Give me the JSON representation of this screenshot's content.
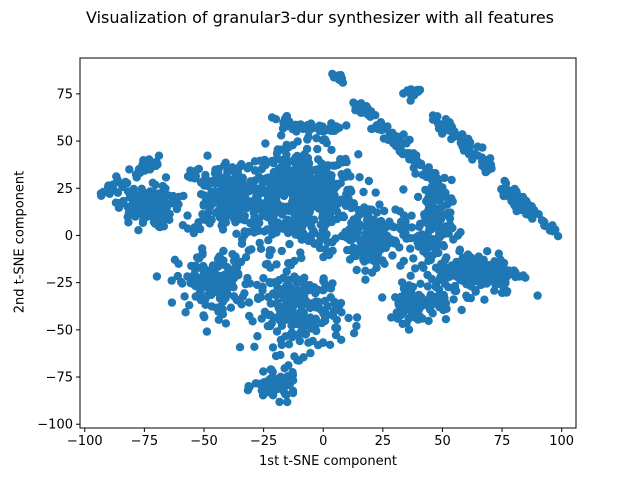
{
  "chart_data": {
    "type": "scatter",
    "title": "Visualization of granular3-dur synthesizer with all features",
    "xlabel": "1st t-SNE component",
    "ylabel": "2nd t-SNE component",
    "xlim": [
      -102,
      106
    ],
    "ylim": [
      -102,
      94
    ],
    "xticks": [
      -100,
      -75,
      -50,
      -25,
      0,
      25,
      50,
      75,
      100
    ],
    "yticks": [
      -100,
      -75,
      -50,
      -25,
      0,
      25,
      50,
      75
    ],
    "color": "#1f77b4",
    "grid": false,
    "legend": "none",
    "clusters": [
      {
        "center": [
          -10,
          20
        ],
        "spread": [
          22,
          24
        ],
        "n": 520
      },
      {
        "center": [
          -40,
          20
        ],
        "spread": [
          18,
          18
        ],
        "n": 220
      },
      {
        "center": [
          -75,
          15
        ],
        "spread": [
          10,
          10
        ],
        "n": 120
      },
      {
        "center": [
          -45,
          -25
        ],
        "spread": [
          15,
          15
        ],
        "n": 150
      },
      {
        "center": [
          -10,
          -40
        ],
        "spread": [
          16,
          20
        ],
        "n": 220
      },
      {
        "center": [
          -20,
          -80
        ],
        "spread": [
          8,
          6
        ],
        "n": 80
      },
      {
        "center": [
          20,
          0
        ],
        "spread": [
          12,
          16
        ],
        "n": 160
      },
      {
        "center": [
          45,
          5
        ],
        "spread": [
          8,
          22
        ],
        "n": 130
      },
      {
        "center": [
          65,
          -20
        ],
        "spread": [
          16,
          10
        ],
        "n": 200
      },
      {
        "center": [
          40,
          -35
        ],
        "spread": [
          12,
          10
        ],
        "n": 100
      }
    ],
    "arcs": [
      {
        "from": [
          6,
          84
        ],
        "to": [
          7,
          83
        ],
        "n": 14
      },
      {
        "from": [
          13,
          70
        ],
        "to": [
          30,
          52
        ],
        "n": 40
      },
      {
        "from": [
          27,
          55
        ],
        "to": [
          50,
          25
        ],
        "n": 60
      },
      {
        "from": [
          36,
          77
        ],
        "to": [
          38,
          74
        ],
        "n": 14
      },
      {
        "from": [
          48,
          62
        ],
        "to": [
          70,
          35
        ],
        "n": 60
      },
      {
        "from": [
          76,
          25
        ],
        "to": [
          96,
          2
        ],
        "n": 60
      },
      {
        "from": [
          -93,
          22
        ],
        "to": [
          -70,
          40
        ],
        "n": 40
      },
      {
        "from": [
          -20,
          60
        ],
        "to": [
          10,
          55
        ],
        "n": 50
      }
    ]
  }
}
